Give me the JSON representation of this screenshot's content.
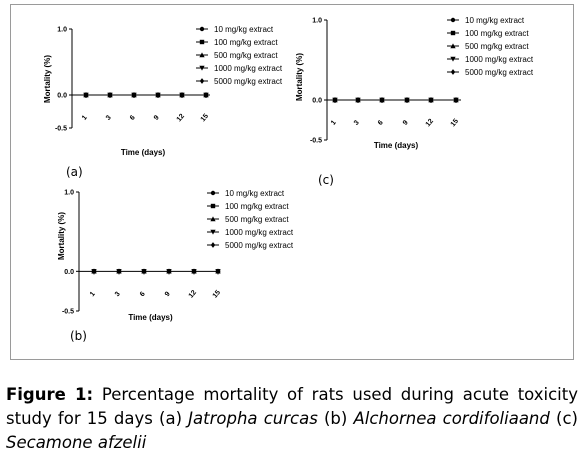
{
  "chart_data": [
    {
      "type": "line",
      "panel_label": "(a)",
      "xlabel": "Time (days)",
      "ylabel": "Mortality (%)",
      "x": [
        "1",
        "3",
        "6",
        "9",
        "12",
        "15"
      ],
      "ylim": [
        -0.5,
        1.0
      ],
      "yticks": [
        "1.0",
        "0.0",
        "-0.5"
      ],
      "series": [
        {
          "name": "10 mg/kg extract",
          "marker": "circle",
          "values": [
            0,
            0,
            0,
            0,
            0,
            0
          ]
        },
        {
          "name": "100 mg/kg extract",
          "marker": "square",
          "values": [
            0,
            0,
            0,
            0,
            0,
            0
          ]
        },
        {
          "name": "500 mg/kg extract",
          "marker": "triangle-up",
          "values": [
            0,
            0,
            0,
            0,
            0,
            0
          ]
        },
        {
          "name": "1000 mg/kg extract",
          "marker": "triangle-down",
          "values": [
            0,
            0,
            0,
            0,
            0,
            0
          ]
        },
        {
          "name": "5000 mg/kg extract",
          "marker": "diamond",
          "values": [
            0,
            0,
            0,
            0,
            0,
            0
          ]
        }
      ],
      "legend_position": "right",
      "grid": false
    },
    {
      "type": "line",
      "panel_label": "(b)",
      "xlabel": "Time (days)",
      "ylabel": "Mortality (%)",
      "x": [
        "1",
        "3",
        "6",
        "9",
        "12",
        "15"
      ],
      "ylim": [
        -0.5,
        1.0
      ],
      "yticks": [
        "1.0",
        "0.0",
        "-0.5"
      ],
      "series": [
        {
          "name": "10 mg/kg extract",
          "marker": "circle",
          "values": [
            0,
            0,
            0,
            0,
            0,
            0
          ]
        },
        {
          "name": "100 mg/kg extract",
          "marker": "square",
          "values": [
            0,
            0,
            0,
            0,
            0,
            0
          ]
        },
        {
          "name": "500 mg/kg extract",
          "marker": "triangle-up",
          "values": [
            0,
            0,
            0,
            0,
            0,
            0
          ]
        },
        {
          "name": "1000 mg/kg extract",
          "marker": "triangle-down",
          "values": [
            0,
            0,
            0,
            0,
            0,
            0
          ]
        },
        {
          "name": "5000 mg/kg extract",
          "marker": "diamond",
          "values": [
            0,
            0,
            0,
            0,
            0,
            0
          ]
        }
      ],
      "legend_position": "right",
      "grid": false
    },
    {
      "type": "line",
      "panel_label": "(c)",
      "xlabel": "Time (days)",
      "ylabel": "Mortality (%)",
      "x": [
        "1",
        "3",
        "6",
        "9",
        "12",
        "15"
      ],
      "ylim": [
        -0.5,
        1.0
      ],
      "yticks": [
        "1.0",
        "0.0",
        "-0.5"
      ],
      "series": [
        {
          "name": "10 mg/kg extract",
          "marker": "circle",
          "values": [
            0,
            0,
            0,
            0,
            0,
            0
          ]
        },
        {
          "name": "100 mg/kg extract",
          "marker": "square",
          "values": [
            0,
            0,
            0,
            0,
            0,
            0
          ]
        },
        {
          "name": "500 mg/kg extract",
          "marker": "triangle-up",
          "values": [
            0,
            0,
            0,
            0,
            0,
            0
          ]
        },
        {
          "name": "1000 mg/kg extract",
          "marker": "triangle-down",
          "values": [
            0,
            0,
            0,
            0,
            0,
            0
          ]
        },
        {
          "name": "5000 mg/kg extract",
          "marker": "diamond",
          "values": [
            0,
            0,
            0,
            0,
            0,
            0
          ]
        }
      ],
      "legend_position": "right",
      "grid": false
    }
  ],
  "caption": {
    "label": "Figure 1:",
    "text1": " Percentage mortality of rats used during acute toxicity study for 15 days (a) ",
    "species_a": "Jatropha curcas",
    "text2": " (b) ",
    "species_b": "Alchornea cordifoliaand",
    "text3": " (c) ",
    "species_c": "Secamone afzelii"
  }
}
